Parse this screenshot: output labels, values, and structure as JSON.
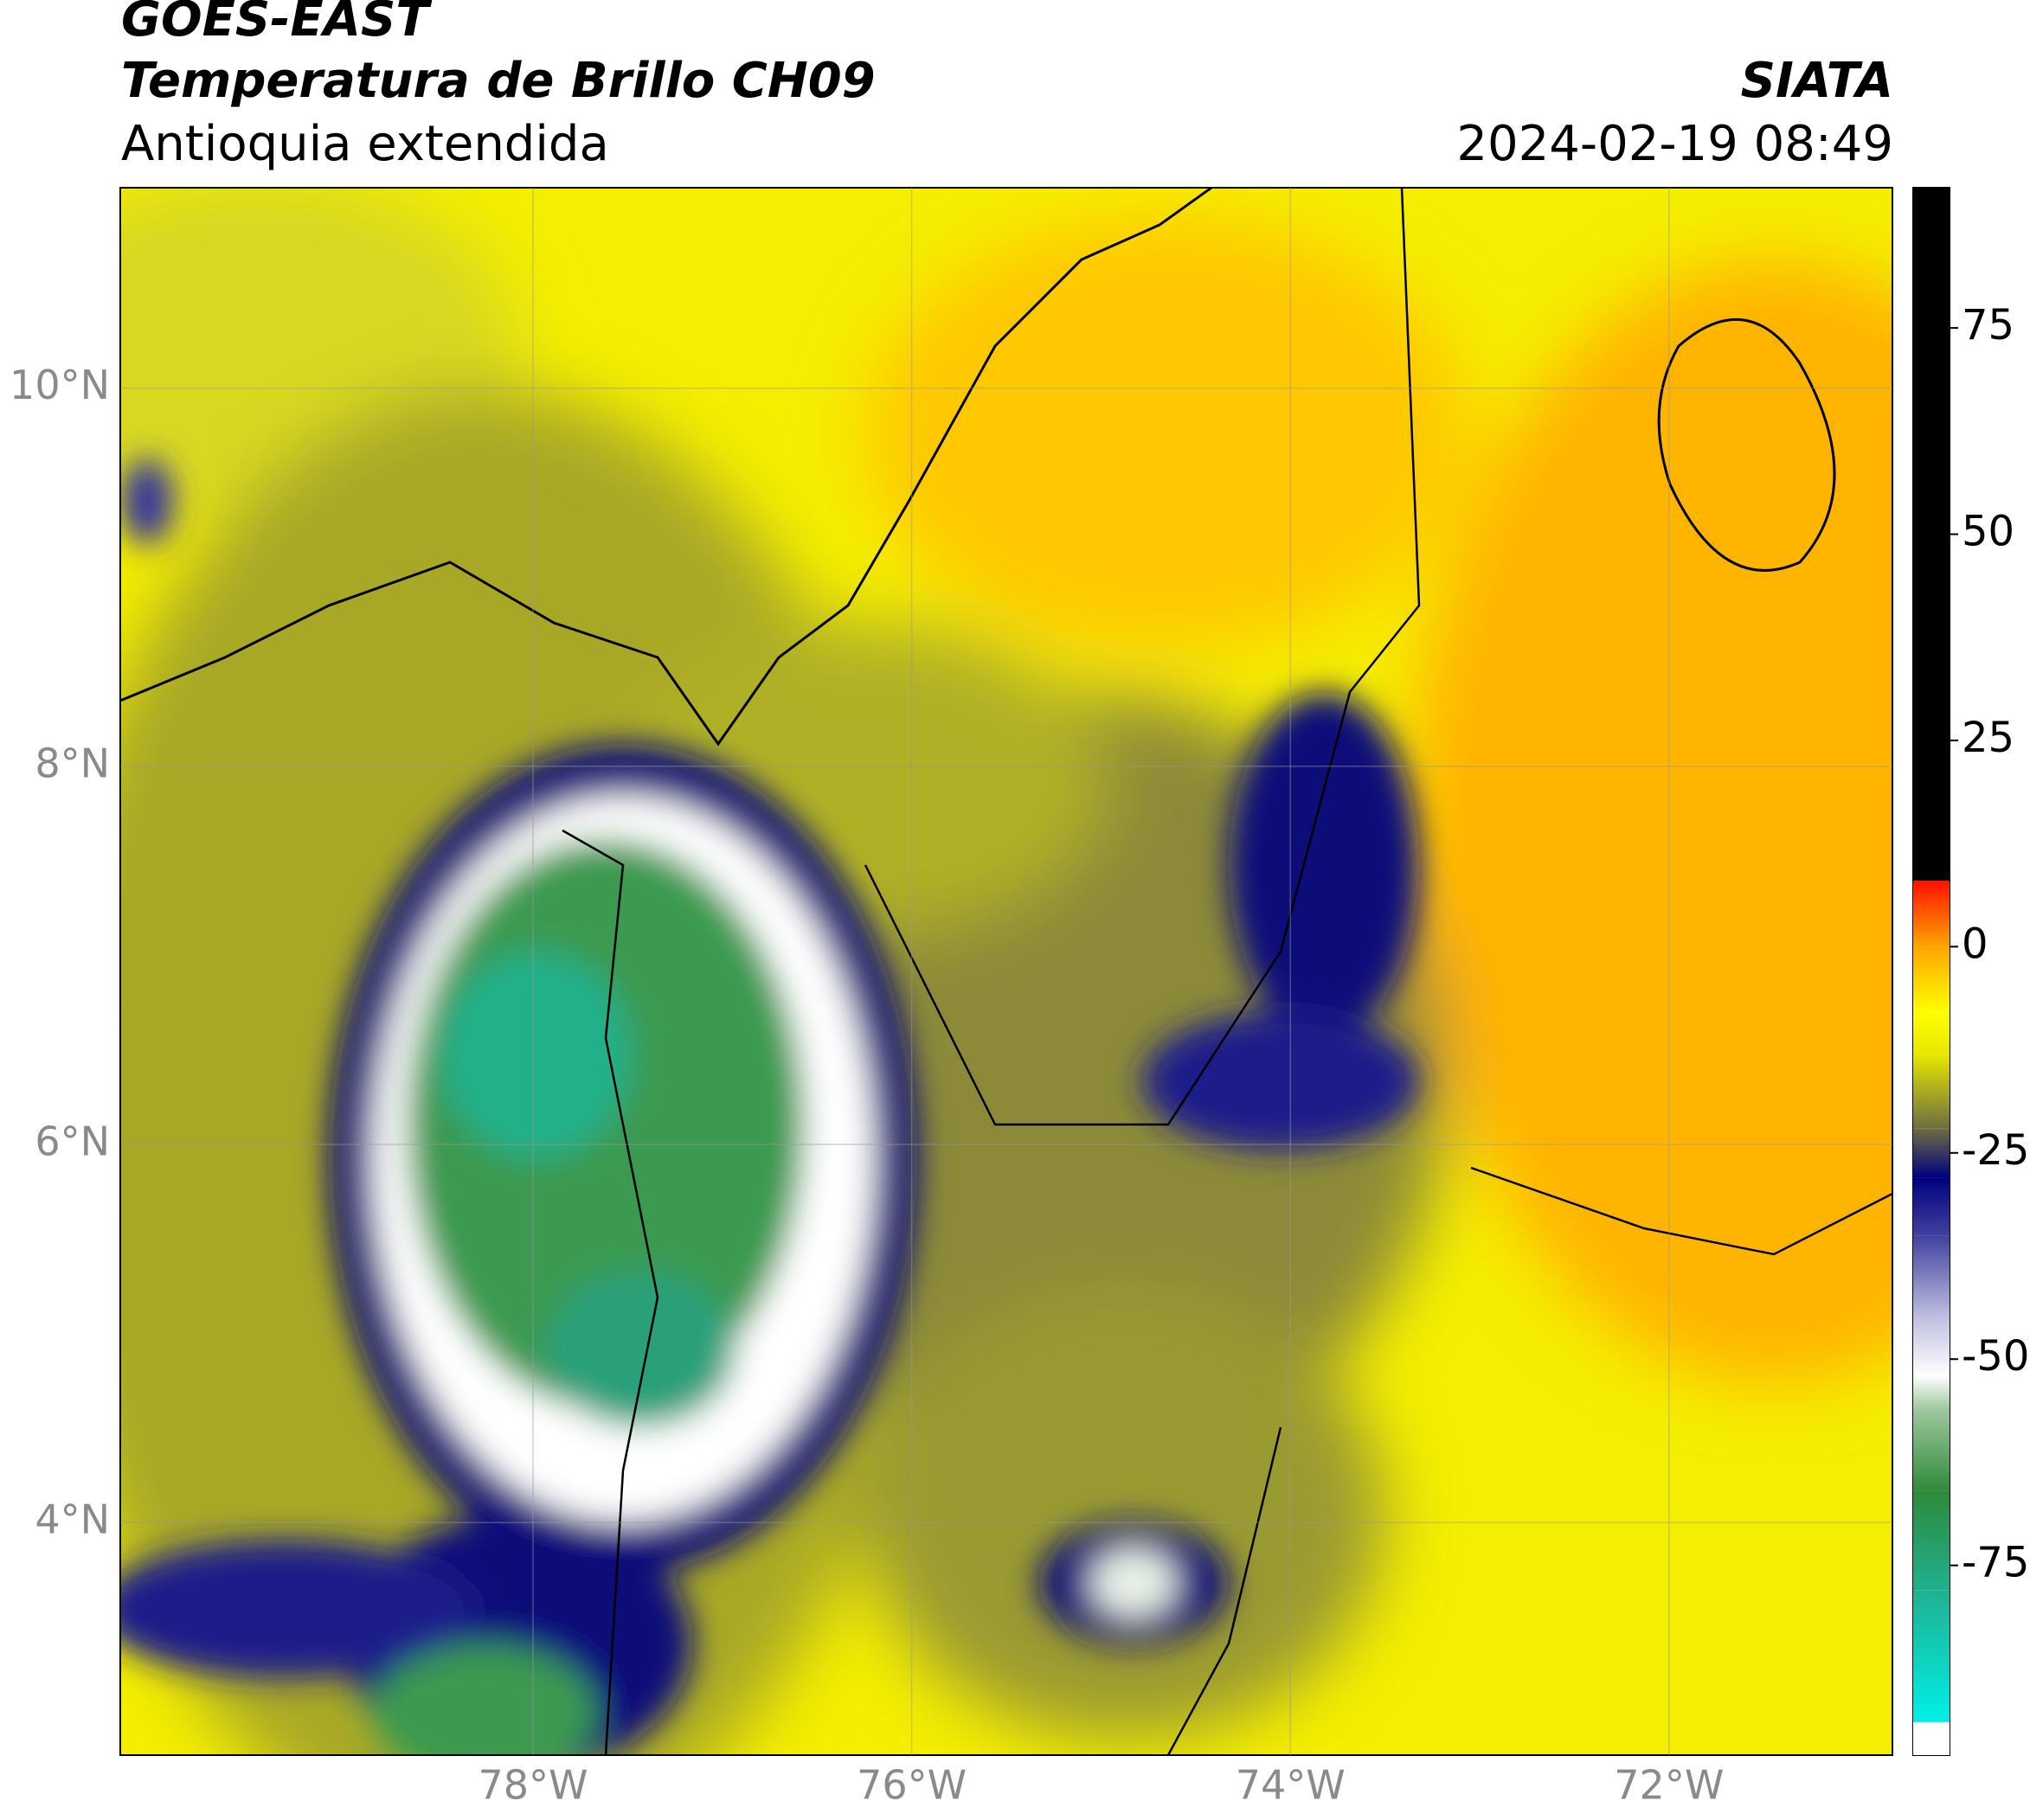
{
  "chart_data": {
    "type": "map",
    "title": "GOES-EAST",
    "subtitle": "Temperatura de Brillo CH09",
    "region": "Antioquia extendida",
    "source": "SIATA",
    "timestamp": "2024-02-19 08:49",
    "xlim": [
      -80.18,
      -70.82
    ],
    "ylim": [
      2.77,
      11.06
    ],
    "xticks": [
      {
        "value": -78,
        "label": "78°W"
      },
      {
        "value": -76,
        "label": "76°W"
      },
      {
        "value": -74,
        "label": "74°W"
      },
      {
        "value": -72,
        "label": "72°W"
      }
    ],
    "yticks": [
      {
        "value": 10,
        "label": "10°N"
      },
      {
        "value": 8,
        "label": "8°N"
      },
      {
        "value": 6,
        "label": "6°N"
      },
      {
        "value": 4,
        "label": "4°N"
      }
    ],
    "grid": true,
    "colorbar": {
      "ylim": [
        -98,
        92
      ],
      "yticks": [
        75,
        50,
        25,
        0,
        -25,
        -50,
        -75
      ],
      "stops": [
        {
          "value": -98,
          "color": "#ffffff"
        },
        {
          "value": -94,
          "color": "#ffffff"
        },
        {
          "value": -94,
          "color": "#00f0e8"
        },
        {
          "value": -78,
          "color": "#20b090"
        },
        {
          "value": -66,
          "color": "#2e8a3a"
        },
        {
          "value": -56,
          "color": "#a0c8a0"
        },
        {
          "value": -52,
          "color": "#ffffff"
        },
        {
          "value": -45,
          "color": "#c0c0e0"
        },
        {
          "value": -35,
          "color": "#4040a0"
        },
        {
          "value": -28,
          "color": "#000080"
        },
        {
          "value": -22,
          "color": "#6e6e40"
        },
        {
          "value": -13,
          "color": "#e8e800"
        },
        {
          "value": -8,
          "color": "#ffff00"
        },
        {
          "value": 0,
          "color": "#ffa500"
        },
        {
          "value": 8,
          "color": "#ff1000"
        },
        {
          "value": 8,
          "color": "#000000"
        },
        {
          "value": 92,
          "color": "#000000"
        }
      ]
    }
  }
}
